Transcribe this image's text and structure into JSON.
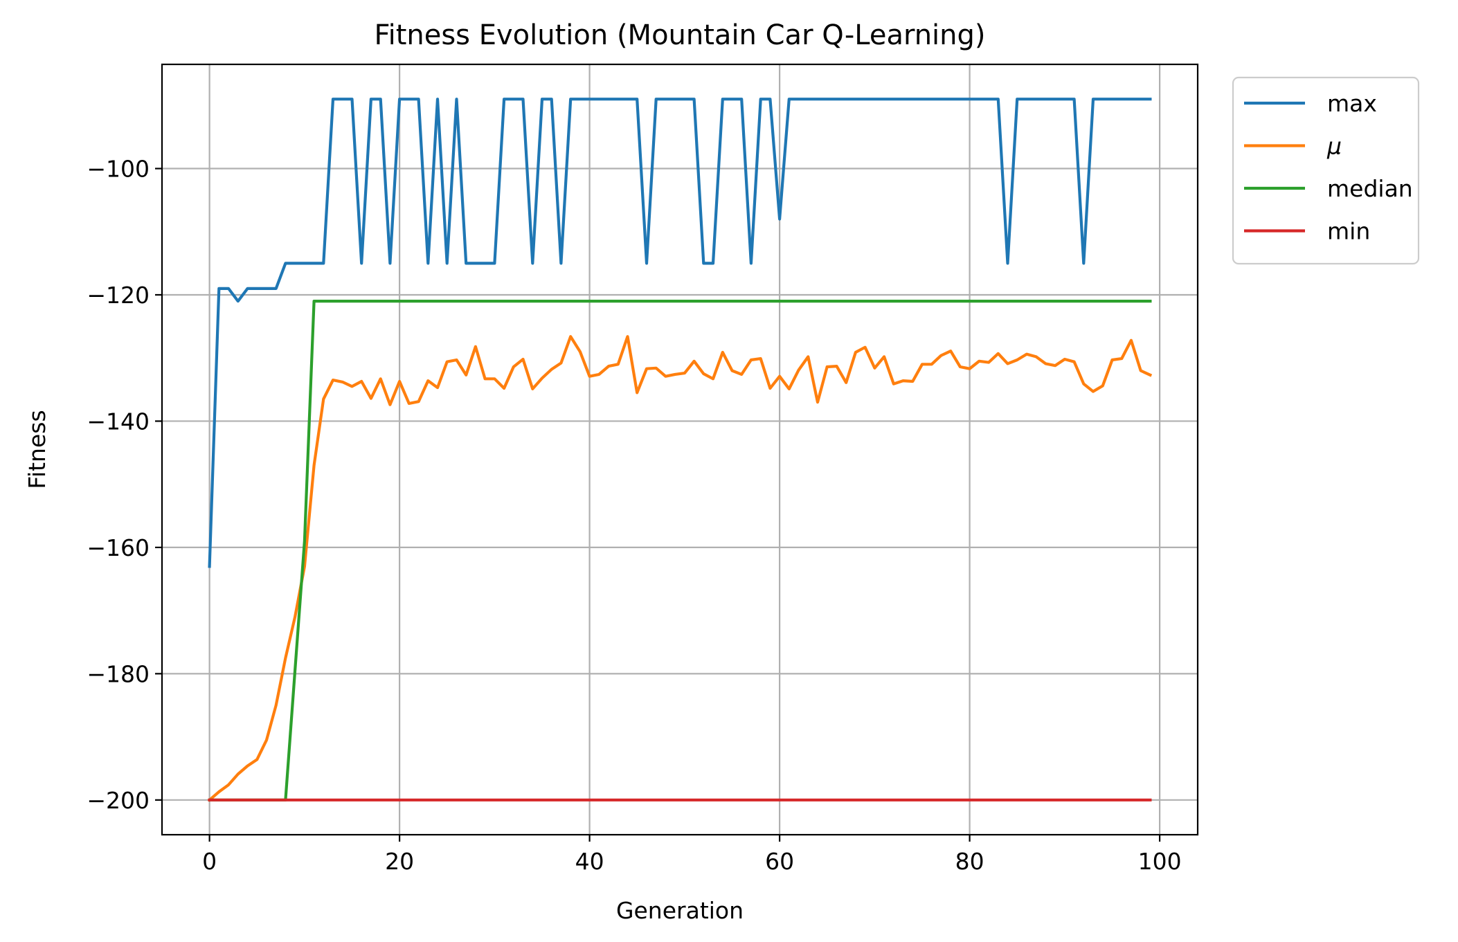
{
  "chart_data": {
    "type": "line",
    "title": "Fitness Evolution (Mountain Car Q-Learning)",
    "xlabel": "Generation",
    "ylabel": "Fitness",
    "xlim": [
      -5,
      104
    ],
    "ylim": [
      -205.5,
      -83.5
    ],
    "xticks": [
      0,
      20,
      40,
      60,
      80,
      100
    ],
    "yticks": [
      -200,
      -180,
      -160,
      -140,
      -120,
      -100
    ],
    "xtick_labels": [
      "0",
      "20",
      "40",
      "60",
      "80",
      "100"
    ],
    "ytick_labels": [
      "−200",
      "−180",
      "−160",
      "−140",
      "−120",
      "−100"
    ],
    "grid": true,
    "legend_position": "outside top-right",
    "series": [
      {
        "name": "max",
        "color": "#1f77b4",
        "values": [
          -163,
          -119,
          -119,
          -121,
          -119,
          -119,
          -119,
          -119,
          -115,
          -115,
          -115,
          -115,
          -115,
          -89,
          -89,
          -89,
          -115,
          -89,
          -89,
          -115,
          -89,
          -89,
          -89,
          -115,
          -89,
          -115,
          -89,
          -115,
          -115,
          -115,
          -115,
          -89,
          -89,
          -89,
          -115,
          -89,
          -89,
          -115,
          -89,
          -89,
          -89,
          -89,
          -89,
          -89,
          -89,
          -89,
          -115,
          -89,
          -89,
          -89,
          -89,
          -89,
          -115,
          -115,
          -89,
          -89,
          -89,
          -115,
          -89,
          -89,
          -108,
          -89,
          -89,
          -89,
          -89,
          -89,
          -89,
          -89,
          -89,
          -89,
          -89,
          -89,
          -89,
          -89,
          -89,
          -89,
          -89,
          -89,
          -89,
          -89,
          -89,
          -89,
          -89,
          -89,
          -115,
          -89,
          -89,
          -89,
          -89,
          -89,
          -89,
          -89,
          -115,
          -89,
          -89,
          -89,
          -89,
          -89,
          -89,
          -89
        ]
      },
      {
        "name": "μ",
        "color": "#ff7f0e",
        "values": [
          -200,
          -198.7,
          -197.6,
          -195.9,
          -194.6,
          -193.6,
          -190.5,
          -185,
          -177.5,
          -171,
          -163,
          -147,
          -136.5,
          -133.5,
          -133.8,
          -134.5,
          -133.7,
          -136.4,
          -133.3,
          -137.4,
          -133.7,
          -137.2,
          -136.9,
          -133.6,
          -134.7,
          -130.6,
          -130.3,
          -132.7,
          -128.2,
          -133.3,
          -133.3,
          -134.8,
          -131.4,
          -130.2,
          -134.9,
          -133.2,
          -131.8,
          -130.8,
          -126.6,
          -129,
          -132.9,
          -132.6,
          -131.3,
          -131,
          -126.6,
          -135.5,
          -131.7,
          -131.6,
          -132.9,
          -132.6,
          -132.4,
          -130.5,
          -132.5,
          -133.3,
          -129.1,
          -132,
          -132.6,
          -130.3,
          -130.1,
          -134.8,
          -132.9,
          -134.9,
          -131.9,
          -129.8,
          -137,
          -131.4,
          -131.3,
          -133.9,
          -129.1,
          -128.3,
          -131.6,
          -129.8,
          -134.1,
          -133.6,
          -133.7,
          -131,
          -131,
          -129.6,
          -128.9,
          -131.4,
          -131.7,
          -130.5,
          -130.7,
          -129.3,
          -130.9,
          -130.3,
          -129.4,
          -129.8,
          -130.9,
          -131.2,
          -130.2,
          -130.6,
          -134.1,
          -135.3,
          -134.4,
          -130.3,
          -130.1,
          -127.2,
          -132,
          -132.7
        ]
      },
      {
        "name": "median",
        "color": "#2ca02c",
        "values": [
          -200,
          -200,
          -200,
          -200,
          -200,
          -200,
          -200,
          -200,
          -200,
          -179.5,
          -159,
          -121,
          -121,
          -121,
          -121,
          -121,
          -121,
          -121,
          -121,
          -121,
          -121,
          -121,
          -121,
          -121,
          -121,
          -121,
          -121,
          -121,
          -121,
          -121,
          -121,
          -121,
          -121,
          -121,
          -121,
          -121,
          -121,
          -121,
          -121,
          -121,
          -121,
          -121,
          -121,
          -121,
          -121,
          -121,
          -121,
          -121,
          -121,
          -121,
          -121,
          -121,
          -121,
          -121,
          -121,
          -121,
          -121,
          -121,
          -121,
          -121,
          -121,
          -121,
          -121,
          -121,
          -121,
          -121,
          -121,
          -121,
          -121,
          -121,
          -121,
          -121,
          -121,
          -121,
          -121,
          -121,
          -121,
          -121,
          -121,
          -121,
          -121,
          -121,
          -121,
          -121,
          -121,
          -121,
          -121,
          -121,
          -121,
          -121,
          -121,
          -121,
          -121,
          -121,
          -121,
          -121,
          -121,
          -121,
          -121,
          -121
        ]
      },
      {
        "name": "min",
        "color": "#d62728",
        "values": [
          -200,
          -200,
          -200,
          -200,
          -200,
          -200,
          -200,
          -200,
          -200,
          -200,
          -200,
          -200,
          -200,
          -200,
          -200,
          -200,
          -200,
          -200,
          -200,
          -200,
          -200,
          -200,
          -200,
          -200,
          -200,
          -200,
          -200,
          -200,
          -200,
          -200,
          -200,
          -200,
          -200,
          -200,
          -200,
          -200,
          -200,
          -200,
          -200,
          -200,
          -200,
          -200,
          -200,
          -200,
          -200,
          -200,
          -200,
          -200,
          -200,
          -200,
          -200,
          -200,
          -200,
          -200,
          -200,
          -200,
          -200,
          -200,
          -200,
          -200,
          -200,
          -200,
          -200,
          -200,
          -200,
          -200,
          -200,
          -200,
          -200,
          -200,
          -200,
          -200,
          -200,
          -200,
          -200,
          -200,
          -200,
          -200,
          -200,
          -200,
          -200,
          -200,
          -200,
          -200,
          -200,
          -200,
          -200,
          -200,
          -200,
          -200,
          -200,
          -200,
          -200,
          -200,
          -200,
          -200,
          -200,
          -200,
          -200,
          -200
        ]
      }
    ]
  }
}
